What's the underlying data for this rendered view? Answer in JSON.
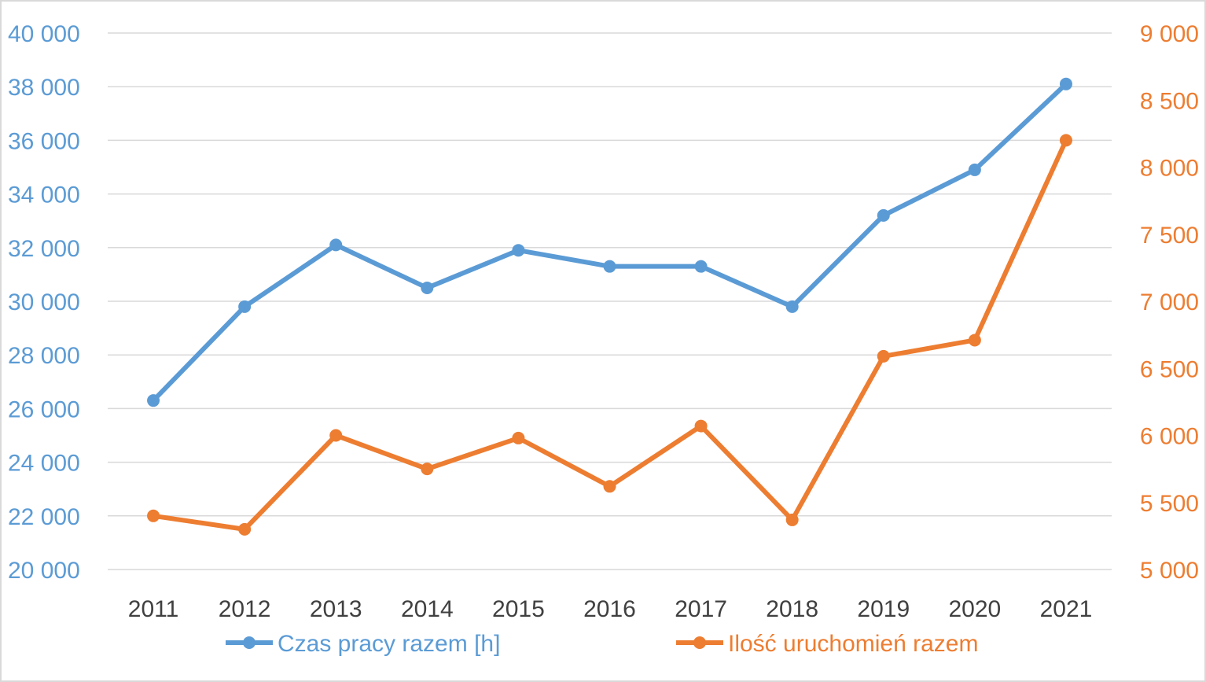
{
  "chart_data": {
    "type": "line",
    "categories": [
      "2011",
      "2012",
      "2013",
      "2014",
      "2015",
      "2016",
      "2017",
      "2018",
      "2019",
      "2020",
      "2021"
    ],
    "series": [
      {
        "name": "Czas pracy razem [h]",
        "axis": "left",
        "color": "#5b9bd5",
        "values": [
          26300,
          29800,
          32100,
          30500,
          31900,
          31300,
          31300,
          29800,
          33200,
          34900,
          38100
        ]
      },
      {
        "name": "Ilość uruchomień razem",
        "axis": "right",
        "color": "#ed7d31",
        "values": [
          5400,
          5300,
          6000,
          5750,
          5980,
          5620,
          6070,
          5370,
          6590,
          6710,
          8200
        ]
      }
    ],
    "y_left": {
      "min": 20000,
      "max": 40000,
      "ticks": [
        "20 000",
        "22 000",
        "24 000",
        "26 000",
        "28 000",
        "30 000",
        "32 000",
        "34 000",
        "36 000",
        "38 000",
        "40 000"
      ]
    },
    "y_right": {
      "min": 5000,
      "max": 9000,
      "ticks": [
        "5 000",
        "5 500",
        "6 000",
        "6 500",
        "7 000",
        "7 500",
        "8 000",
        "8 500",
        "9 000"
      ]
    },
    "grid": true,
    "legend_position": "bottom"
  }
}
